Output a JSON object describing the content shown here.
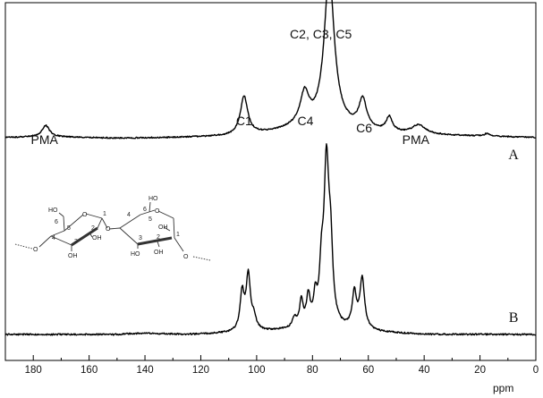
{
  "chart_data": {
    "type": "line",
    "xlabel": "ppm",
    "x_reversed": true,
    "xlim": [
      190,
      0
    ],
    "xticks": [
      180,
      160,
      140,
      120,
      100,
      80,
      60,
      40,
      20,
      0
    ],
    "grid": false,
    "y_axis_shown": false,
    "series": [
      {
        "name": "A",
        "color": "#000000",
        "offset": 0.62,
        "noise_amplitude": 0.002,
        "baseline": [
          [
            190,
            0.0
          ],
          [
            176,
            0.003
          ],
          [
            150,
            -0.002
          ],
          [
            130,
            0.0
          ],
          [
            110,
            0.004
          ],
          [
            95,
            0.015
          ],
          [
            85,
            0.03
          ],
          [
            70,
            0.03
          ],
          [
            60,
            0.02
          ],
          [
            48,
            0.012
          ],
          [
            30,
            0.006
          ],
          [
            18,
            0.004
          ],
          [
            0,
            0.0
          ]
        ],
        "peaks": [
          {
            "center": 175.5,
            "height": 0.035,
            "width": 1.6
          },
          {
            "center": 104.5,
            "height": 0.12,
            "width": 1.6
          },
          {
            "center": 82.8,
            "height": 0.1,
            "width": 1.9
          },
          {
            "center": 74.0,
            "height": 0.48,
            "width": 2.2
          },
          {
            "center": 62.0,
            "height": 0.09,
            "width": 1.7
          },
          {
            "center": 52.5,
            "height": 0.045,
            "width": 1.3
          },
          {
            "center": 42.0,
            "height": 0.028,
            "width": 2.8
          },
          {
            "center": 17.5,
            "height": 0.008,
            "width": 1.2
          }
        ]
      },
      {
        "name": "B",
        "color": "#000000",
        "offset": 0.0,
        "noise_amplitude": 0.0025,
        "baseline": [
          [
            190,
            0.0
          ],
          [
            150,
            0.0
          ],
          [
            141,
            0.004
          ],
          [
            125,
            0.0
          ],
          [
            110,
            0.004
          ],
          [
            95,
            0.01
          ],
          [
            85,
            0.015
          ],
          [
            70,
            0.015
          ],
          [
            55,
            0.006
          ],
          [
            40,
            0.0
          ],
          [
            0,
            0.0
          ]
        ],
        "peaks": [
          {
            "center": 105.2,
            "height": 0.12,
            "width": 0.9
          },
          {
            "center": 103.0,
            "height": 0.17,
            "width": 0.9
          },
          {
            "center": 101.0,
            "height": 0.04,
            "width": 1.0
          },
          {
            "center": 86.5,
            "height": 0.03,
            "width": 0.8
          },
          {
            "center": 84.0,
            "height": 0.08,
            "width": 0.8
          },
          {
            "center": 81.5,
            "height": 0.09,
            "width": 0.8
          },
          {
            "center": 79.0,
            "height": 0.08,
            "width": 0.8
          },
          {
            "center": 76.8,
            "height": 0.14,
            "width": 0.8
          },
          {
            "center": 75.0,
            "height": 0.5,
            "width": 1.1
          },
          {
            "center": 73.5,
            "height": 0.2,
            "width": 0.9
          },
          {
            "center": 65.0,
            "height": 0.11,
            "width": 0.9
          },
          {
            "center": 62.2,
            "height": 0.16,
            "width": 1.0
          }
        ]
      }
    ]
  },
  "annotations": [
    {
      "text": "PMA",
      "x": 176
    },
    {
      "text": "C1",
      "x": 104.5
    },
    {
      "text": "C4",
      "x": 82.5
    },
    {
      "text": "C2, C3, C5",
      "x": 77
    },
    {
      "text": "C6",
      "x": 61.5
    },
    {
      "text": "PMA",
      "x": 43
    }
  ],
  "trace_labels": [
    {
      "text": "A",
      "x": 8
    },
    {
      "text": "B",
      "x": 8
    }
  ],
  "molecule": {
    "oh_labels": [
      "HO",
      "OH",
      "OH",
      "HO",
      "OH",
      "HO",
      "OH"
    ],
    "o_labels": [
      "O",
      "O",
      "O",
      "O",
      "O"
    ],
    "numbers": [
      "1",
      "2",
      "3",
      "4",
      "5",
      "6",
      "1",
      "2",
      "3",
      "4",
      "5",
      "6"
    ]
  }
}
